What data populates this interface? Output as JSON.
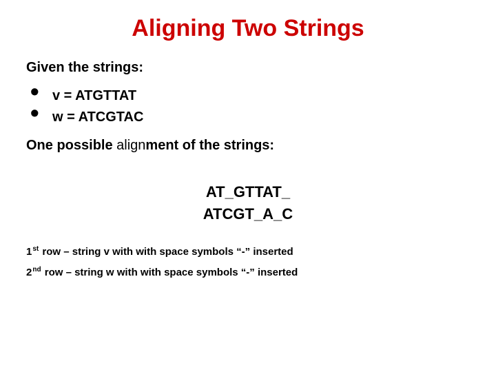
{
  "colors": {
    "title": "#cc0000",
    "body": "#000000",
    "background": "#ffffff"
  },
  "fonts": {
    "title_size": 34,
    "body_size": 20,
    "align_size": 22,
    "footnote_size": 15
  },
  "title": "Aligning Two Strings",
  "intro": "Given the strings:",
  "bullets": [
    "v =  ATGTTAT",
    "w = ATCGTAC"
  ],
  "one_possible": {
    "lead": "One possible ",
    "mid": "align",
    "tail": "ment of the strings:"
  },
  "alignment": {
    "row1": "AT_GTTAT_",
    "row2": "ATCGT_A_C"
  },
  "footnotes": {
    "r1_a": "1",
    "r1_sup": "st",
    "r1_b": " row –  string v with with space symbols “-” inserted",
    "r2_a": "2",
    "r2_sup": "nd",
    "r2_b": " row – string w with with space symbols “-” inserted"
  }
}
